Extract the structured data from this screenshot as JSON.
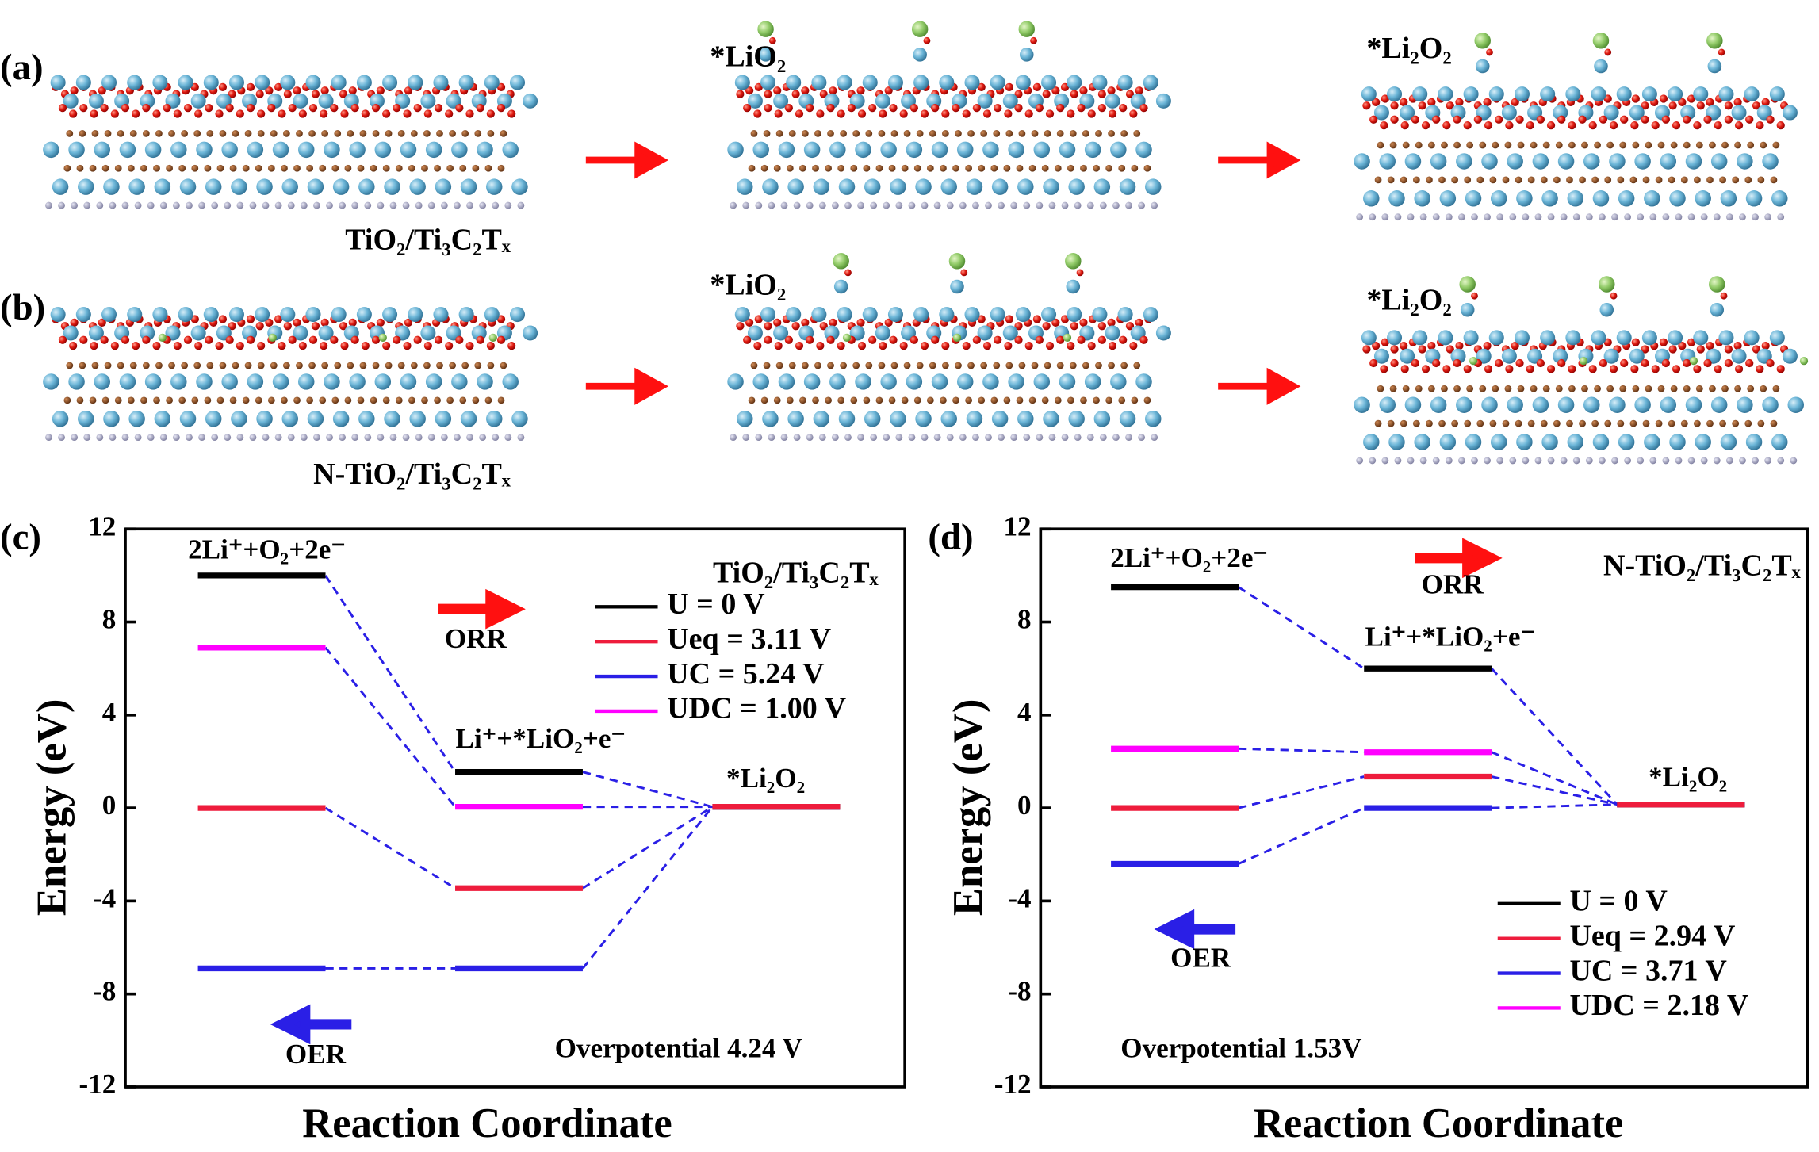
{
  "structures": {
    "labels": [
      "(a)",
      "(b)"
    ],
    "substrates": [
      "TiO₂/Ti₃C₂Tₓ",
      "N-TiO₂/Ti₃C₂Tₓ"
    ],
    "intermediates": [
      "*LiO₂",
      "*Li₂O₂"
    ]
  },
  "chart_data": [
    {
      "type": "energy-level",
      "panel": "(c)",
      "title": "TiO₂/Ti₃C₂Tₓ",
      "y_label": "Energy (eV)",
      "x_label": "Reaction Coordinate",
      "categories": [
        "2Li⁺+O₂+2e⁻",
        "Li⁺+*LiO₂+e⁻",
        "*Li₂O₂"
      ],
      "series": [
        {
          "name": "U = 0 V",
          "color": "#000000",
          "values": [
            10.0,
            1.55,
            0.05
          ]
        },
        {
          "name": "Ueq = 3.11 V",
          "color": "#ee1c3c",
          "values": [
            0.0,
            -3.45,
            0.05
          ]
        },
        {
          "name": "UC = 5.24 V",
          "color": "#2a1fe6",
          "values": [
            -6.9,
            -6.9,
            0.05
          ]
        },
        {
          "name": "UDC = 1.00 V",
          "color": "#ff00ff",
          "values": [
            6.9,
            0.05,
            0.05
          ]
        }
      ],
      "ylim": [
        -12,
        12
      ],
      "yticks": [
        -12,
        -8,
        -4,
        0,
        4,
        8,
        12
      ],
      "legend": "upper right",
      "connector_color": "#2a1fe6",
      "annotations": [
        "ORR",
        "OER",
        "Overpotential 4.24 V"
      ]
    },
    {
      "type": "energy-level",
      "panel": "(d)",
      "title": "N-TiO₂/Ti₃C₂Tₓ",
      "y_label": "Energy (eV)",
      "x_label": "Reaction Coordinate",
      "categories": [
        "2Li⁺+O₂+2e⁻",
        "Li⁺+*LiO₂+e⁻",
        "*Li₂O₂"
      ],
      "series": [
        {
          "name": "U = 0 V",
          "color": "#000000",
          "values": [
            9.5,
            6.0,
            0.15
          ]
        },
        {
          "name": "Ueq = 2.94 V",
          "color": "#ee1c3c",
          "values": [
            0.0,
            1.35,
            0.15
          ]
        },
        {
          "name": "UC = 3.71 V",
          "color": "#2a1fe6",
          "values": [
            -2.4,
            0.0,
            0.15
          ]
        },
        {
          "name": "UDC = 2.18 V",
          "color": "#ff00ff",
          "values": [
            2.55,
            2.4,
            0.15
          ]
        }
      ],
      "ylim": [
        -12,
        12
      ],
      "yticks": [
        -12,
        -8,
        -4,
        0,
        4,
        8,
        12
      ],
      "legend": "lower right",
      "connector_color": "#2a1fe6",
      "annotations": [
        "ORR",
        "OER",
        "Overpotential 1.53V"
      ]
    }
  ]
}
